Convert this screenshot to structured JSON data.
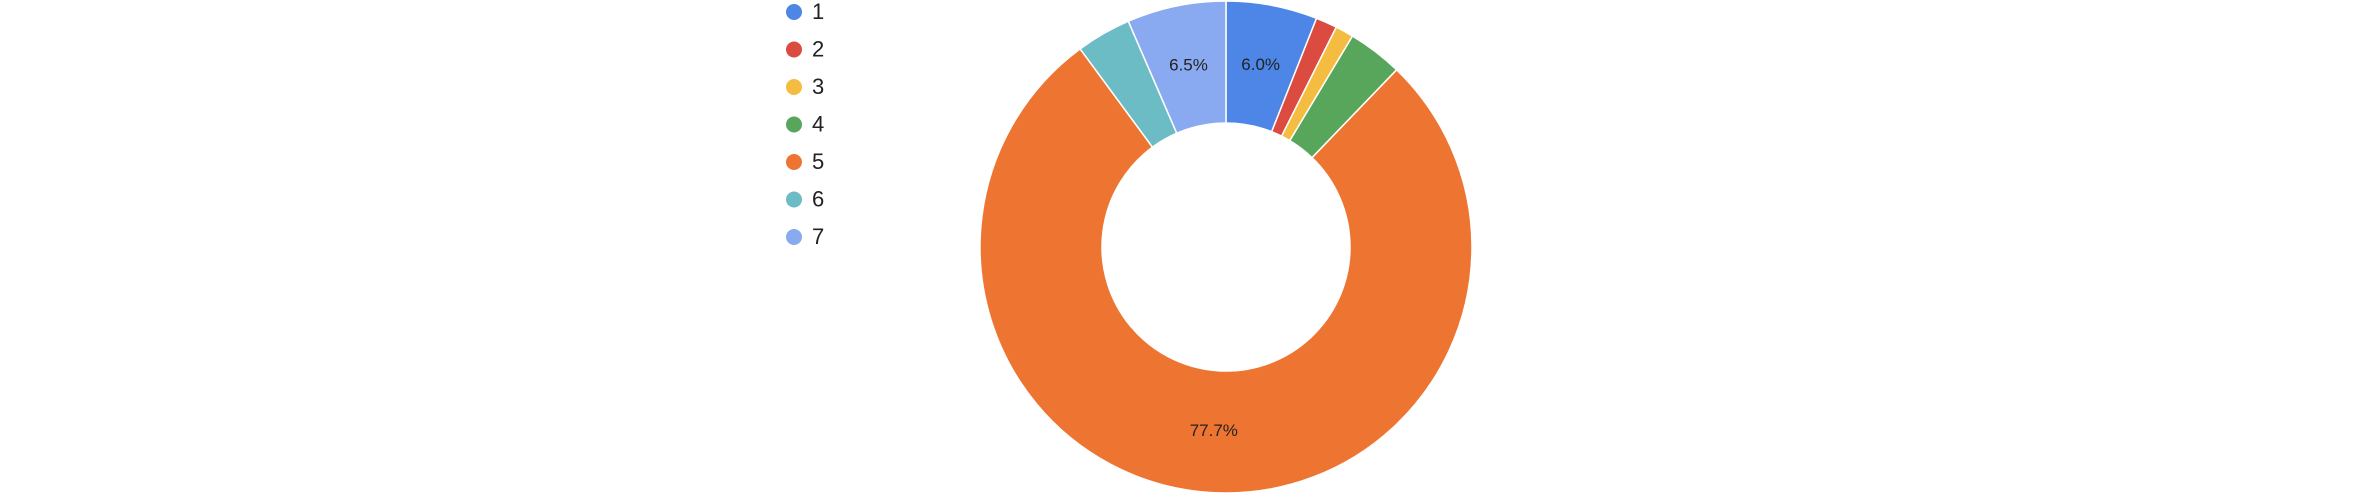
{
  "chart_data": {
    "type": "donut",
    "categories": [
      "1",
      "2",
      "3",
      "4",
      "5",
      "6",
      "7"
    ],
    "values": [
      6.0,
      1.4,
      1.2,
      3.6,
      77.7,
      3.6,
      6.5
    ],
    "value_labels": [
      "6.0%",
      null,
      null,
      null,
      "77.7%",
      null,
      "6.5%"
    ],
    "colors": [
      "#4e86e8",
      "#db4b3f",
      "#f4bd42",
      "#58a55c",
      "#ed7531",
      "#6bbcc4",
      "#89aaf0"
    ],
    "legend": "left"
  }
}
